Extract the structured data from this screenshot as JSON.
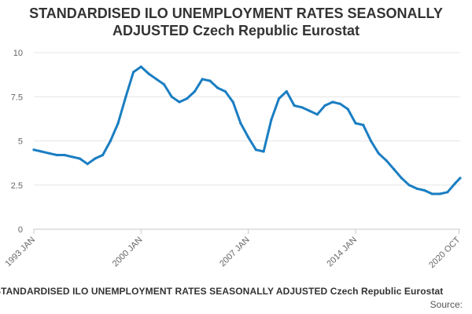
{
  "header": {
    "title_line1": "STANDARDISED ILO UNEMPLOYMENT RATES SEASONALLY",
    "title_line2": "ADJUSTED Czech Republic Eurostat"
  },
  "footer": {
    "caption": "STANDARDISED ILO UNEMPLOYMENT RATES SEASONALLY ADJUSTED Czech Republic Eurostat",
    "source": "Source:"
  },
  "chart_data": {
    "type": "line",
    "title": "STANDARDISED ILO UNEMPLOYMENT RATES SEASONALLY ADJUSTED Czech Republic Eurostat",
    "xlabel": "",
    "ylabel": "",
    "ylim": [
      0,
      10
    ],
    "yticks": [
      {
        "value": 0,
        "label": "0"
      },
      {
        "value": 2.5,
        "label": "2.5"
      },
      {
        "value": 5,
        "label": "5"
      },
      {
        "value": 7.5,
        "label": "7.5"
      },
      {
        "value": 10,
        "label": "10"
      }
    ],
    "xlim": [
      1993.0,
      2020.83
    ],
    "xticks": [
      {
        "value": 1993.0,
        "label": "1993 JAN"
      },
      {
        "value": 2000.0,
        "label": "2000 JAN"
      },
      {
        "value": 2007.0,
        "label": "2007 JAN"
      },
      {
        "value": 2014.0,
        "label": "2014 JAN"
      },
      {
        "value": 2020.75,
        "label": "2020 OCT"
      }
    ],
    "grid": true,
    "line_color": "#1a7ec2",
    "series": [
      {
        "name": "Czech Republic",
        "x": [
          1993.0,
          1993.5,
          1994.0,
          1994.5,
          1995.0,
          1995.5,
          1996.0,
          1996.5,
          1997.0,
          1997.5,
          1998.0,
          1998.5,
          1999.0,
          1999.5,
          2000.0,
          2000.5,
          2001.0,
          2001.5,
          2002.0,
          2002.5,
          2003.0,
          2003.5,
          2004.0,
          2004.5,
          2005.0,
          2005.5,
          2006.0,
          2006.5,
          2007.0,
          2007.5,
          2008.0,
          2008.5,
          2009.0,
          2009.5,
          2010.0,
          2010.5,
          2011.0,
          2011.5,
          2012.0,
          2012.5,
          2013.0,
          2013.5,
          2014.0,
          2014.5,
          2015.0,
          2015.5,
          2016.0,
          2016.5,
          2017.0,
          2017.5,
          2018.0,
          2018.5,
          2019.0,
          2019.5,
          2020.0,
          2020.5,
          2020.83
        ],
        "values": [
          4.5,
          4.4,
          4.3,
          4.2,
          4.2,
          4.1,
          4.0,
          3.7,
          4.0,
          4.2,
          5.0,
          6.0,
          7.5,
          8.9,
          9.2,
          8.8,
          8.5,
          8.2,
          7.5,
          7.2,
          7.4,
          7.8,
          8.5,
          8.4,
          8.0,
          7.8,
          7.2,
          6.0,
          5.2,
          4.5,
          4.4,
          6.2,
          7.4,
          7.8,
          7.0,
          6.9,
          6.7,
          6.5,
          7.0,
          7.2,
          7.1,
          6.8,
          6.0,
          5.9,
          5.0,
          4.3,
          3.9,
          3.4,
          2.9,
          2.5,
          2.3,
          2.2,
          2.0,
          2.0,
          2.1,
          2.6,
          2.9
        ]
      }
    ]
  }
}
